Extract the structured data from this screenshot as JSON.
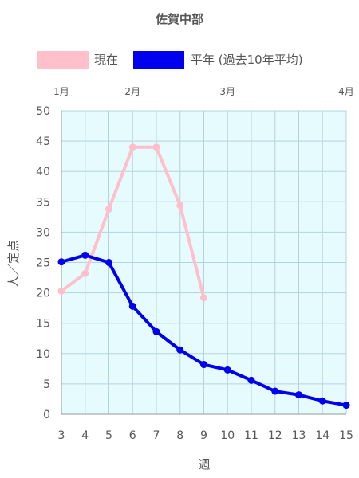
{
  "chart_data": {
    "type": "line",
    "title": "佐賀中部",
    "xlabel": "週",
    "ylabel": "人／定点",
    "x": [
      3,
      4,
      5,
      6,
      7,
      8,
      9,
      10,
      11,
      12,
      13,
      14,
      15
    ],
    "xlim": [
      3,
      15
    ],
    "ylim": [
      0,
      50
    ],
    "yticks": [
      0,
      5,
      10,
      15,
      20,
      25,
      30,
      35,
      40,
      45,
      50
    ],
    "xticks": [
      3,
      4,
      5,
      6,
      7,
      8,
      9,
      10,
      11,
      12,
      13,
      14,
      15
    ],
    "month_ticks": [
      {
        "label": "1月",
        "x": 3
      },
      {
        "label": "2月",
        "x": 6
      },
      {
        "label": "3月",
        "x": 10
      },
      {
        "label": "4月",
        "x": 15
      }
    ],
    "grid": true,
    "legend_position": "top",
    "plot_background": "#e6fbfd",
    "series": [
      {
        "name": "現在",
        "color": "#ffc0cb",
        "x": [
          3,
          4,
          5,
          6,
          7,
          8,
          9
        ],
        "values": [
          20.3,
          23.2,
          33.8,
          44.0,
          44.0,
          34.4,
          19.2
        ]
      },
      {
        "name": "平年 (過去10年平均)",
        "color": "#0000ee",
        "x": [
          3,
          4,
          5,
          6,
          7,
          8,
          9,
          10,
          11,
          12,
          13,
          14,
          15
        ],
        "values": [
          25.1,
          26.2,
          25.0,
          17.8,
          13.6,
          10.6,
          8.2,
          7.3,
          5.6,
          3.8,
          3.2,
          2.2,
          1.5
        ]
      }
    ]
  }
}
